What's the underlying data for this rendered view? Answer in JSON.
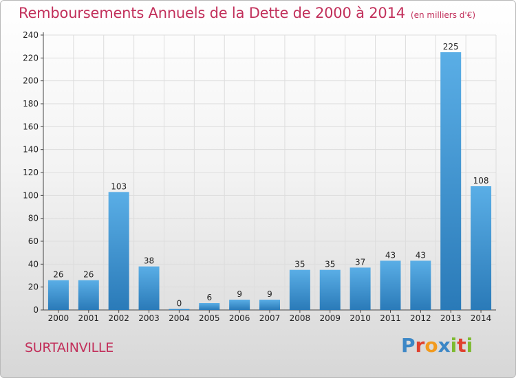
{
  "chart_data": {
    "type": "bar",
    "title": "Remboursements Annuels de la Dette de 2000 à 2014",
    "unit": "(en milliers d'€)",
    "categories": [
      "2000",
      "2001",
      "2002",
      "2003",
      "2004",
      "2005",
      "2006",
      "2007",
      "2008",
      "2009",
      "2010",
      "2011",
      "2012",
      "2013",
      "2014"
    ],
    "values": [
      26,
      26,
      103,
      38,
      0,
      6,
      9,
      9,
      35,
      35,
      37,
      43,
      43,
      225,
      108
    ],
    "ylim": [
      0,
      240
    ],
    "yticks": [
      0,
      20,
      40,
      60,
      80,
      100,
      120,
      140,
      160,
      180,
      200,
      220,
      240
    ],
    "grid": true,
    "colors": {
      "bar_top": "#5aaee6",
      "bar_bottom": "#2a7ab8",
      "title": "#c2305b"
    }
  },
  "location": "SURTAINVILLE",
  "logo": {
    "letters": [
      "P",
      "r",
      "o",
      "x",
      "i",
      "t",
      "i"
    ],
    "colors": [
      "#3c87c6",
      "#e0402e",
      "#f29a1d",
      "#3c87c6",
      "#7dba2f",
      "#e0402e",
      "#7dba2f"
    ]
  }
}
